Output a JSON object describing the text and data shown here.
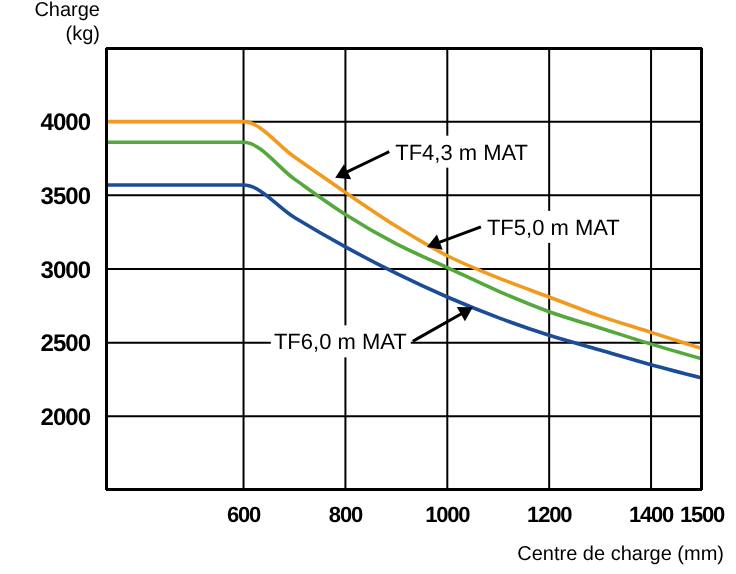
{
  "chart_data": {
    "type": "line",
    "xlabel": "Centre de charge (mm)",
    "ylabel": "Charge (kg)",
    "xlim": [
      330,
      1500
    ],
    "ylim": [
      1500,
      4500
    ],
    "xticks": [
      600,
      800,
      1000,
      1200,
      1400,
      1500
    ],
    "yticks": [
      2000,
      2500,
      3000,
      3500,
      4000
    ],
    "x": [
      330,
      600,
      700,
      800,
      900,
      1000,
      1100,
      1200,
      1300,
      1400,
      1500
    ],
    "series": [
      {
        "color": "#f29a1e",
        "values": [
          4000,
          4000,
          3760,
          3520,
          3290,
          3090,
          2940,
          2810,
          2680,
          2570,
          2460
        ]
      },
      {
        "color": "#55a83c",
        "values": [
          3860,
          3860,
          3610,
          3370,
          3170,
          3010,
          2850,
          2710,
          2600,
          2490,
          2390
        ]
      },
      {
        "color": "#1d4c96",
        "values": [
          3570,
          3570,
          3350,
          3150,
          2970,
          2810,
          2670,
          2550,
          2450,
          2350,
          2260
        ]
      }
    ],
    "annotations": [
      {
        "text": "TF4,3 m MAT",
        "x": 780,
        "y": 3620
      },
      {
        "text": "TF5,0 m MAT",
        "x": 960,
        "y": 3150
      },
      {
        "text": "TF6,0 m MAT",
        "x": 1050,
        "y": 2740
      }
    ],
    "grid": true,
    "legend": false,
    "marker": "none",
    "line_style": "solid"
  }
}
